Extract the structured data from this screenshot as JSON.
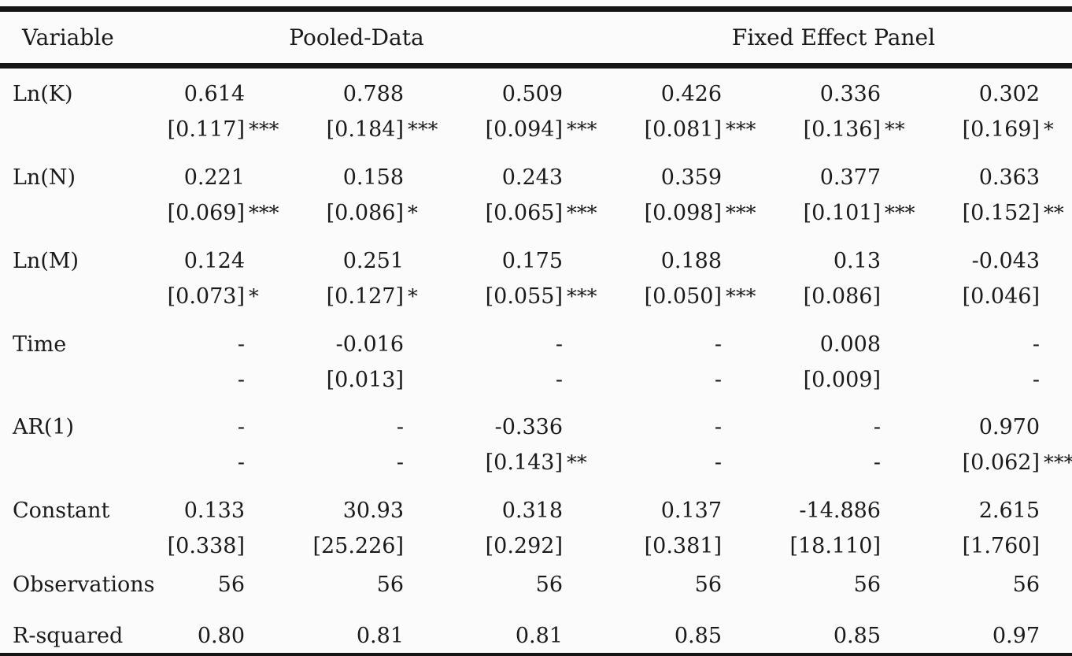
{
  "page": {
    "background": "#fbfbfb",
    "text_color": "#1a1a1a",
    "rule_color": "#151515"
  },
  "table": {
    "header": {
      "variable_label": "Variable",
      "group_labels": [
        "Pooled-Data",
        "Fixed Effect Panel"
      ]
    },
    "coef_rows": [
      {
        "label": "Ln(K)",
        "cells": [
          {
            "v": "0.614",
            "se": "[0.117]",
            "stars": "***"
          },
          {
            "v": "0.788",
            "se": "[0.184]",
            "stars": "***"
          },
          {
            "v": "0.509",
            "se": "[0.094]",
            "stars": "***"
          },
          {
            "v": "0.426",
            "se": "[0.081]",
            "stars": "***"
          },
          {
            "v": "0.336",
            "se": "[0.136]",
            "stars": "**"
          },
          {
            "v": "0.302",
            "se": "[0.169]",
            "stars": "*"
          }
        ]
      },
      {
        "label": "Ln(N)",
        "cells": [
          {
            "v": "0.221",
            "se": "[0.069]",
            "stars": "***"
          },
          {
            "v": "0.158",
            "se": "[0.086]",
            "stars": "*"
          },
          {
            "v": "0.243",
            "se": "[0.065]",
            "stars": "***"
          },
          {
            "v": "0.359",
            "se": "[0.098]",
            "stars": "***"
          },
          {
            "v": "0.377",
            "se": "[0.101]",
            "stars": "***"
          },
          {
            "v": "0.363",
            "se": "[0.152]",
            "stars": "**"
          }
        ]
      },
      {
        "label": "Ln(M)",
        "cells": [
          {
            "v": "0.124",
            "se": "[0.073]",
            "stars": "*"
          },
          {
            "v": "0.251",
            "se": "[0.127]",
            "stars": "*"
          },
          {
            "v": "0.175",
            "se": "[0.055]",
            "stars": "***"
          },
          {
            "v": "0.188",
            "se": "[0.050]",
            "stars": "***"
          },
          {
            "v": "0.13",
            "se": "[0.086]",
            "stars": ""
          },
          {
            "v": "-0.043",
            "se": "[0.046]",
            "stars": ""
          }
        ]
      },
      {
        "label": "Time",
        "cells": [
          {
            "v": "-",
            "se": "-",
            "stars": ""
          },
          {
            "v": "-0.016",
            "se": "[0.013]",
            "stars": ""
          },
          {
            "v": "-",
            "se": "-",
            "stars": ""
          },
          {
            "v": "-",
            "se": "-",
            "stars": ""
          },
          {
            "v": "0.008",
            "se": "[0.009]",
            "stars": ""
          },
          {
            "v": "-",
            "se": "-",
            "stars": ""
          }
        ]
      },
      {
        "label": "AR(1)",
        "cells": [
          {
            "v": "-",
            "se": "-",
            "stars": ""
          },
          {
            "v": "-",
            "se": "-",
            "stars": ""
          },
          {
            "v": "-0.336",
            "se": "[0.143]",
            "stars": "**"
          },
          {
            "v": "-",
            "se": "-",
            "stars": ""
          },
          {
            "v": "-",
            "se": "-",
            "stars": ""
          },
          {
            "v": "0.970",
            "se": "[0.062]",
            "stars": "***"
          }
        ]
      },
      {
        "label": "Constant",
        "cells": [
          {
            "v": "0.133",
            "se": "[0.338]",
            "stars": ""
          },
          {
            "v": "30.93",
            "se": "[25.226]",
            "stars": ""
          },
          {
            "v": "0.318",
            "se": "[0.292]",
            "stars": ""
          },
          {
            "v": "0.137",
            "se": "[0.381]",
            "stars": ""
          },
          {
            "v": "-14.886",
            "se": "[18.110]",
            "stars": ""
          },
          {
            "v": "2.615",
            "se": "[1.760]",
            "stars": ""
          }
        ]
      }
    ],
    "stat_rows": [
      {
        "label": "Observations",
        "values": [
          "56",
          "56",
          "56",
          "56",
          "56",
          "56"
        ]
      },
      {
        "label": "R-squared",
        "values": [
          "0.80",
          "0.81",
          "0.81",
          "0.85",
          "0.85",
          "0.97"
        ]
      }
    ]
  }
}
